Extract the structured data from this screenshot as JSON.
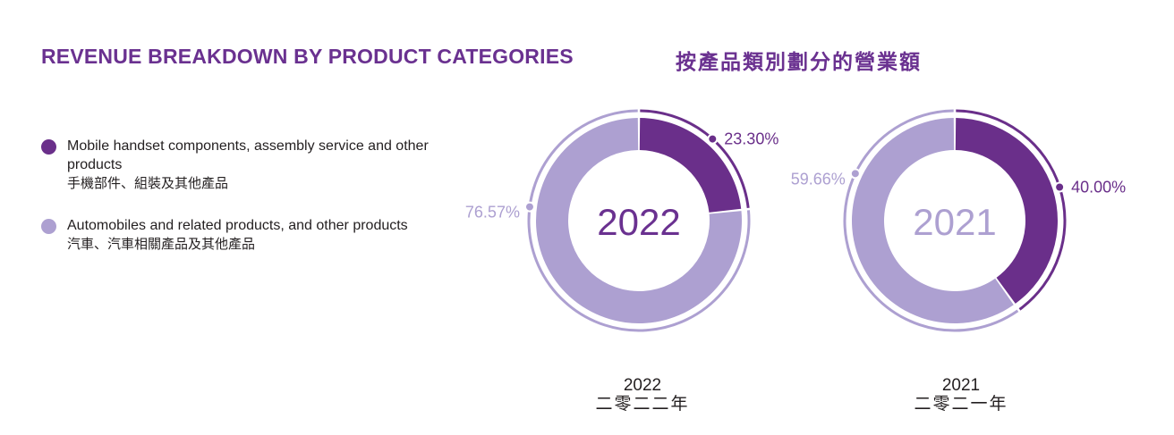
{
  "title_en": "REVENUE BREAKDOWN BY PRODUCT CATEGORIES",
  "title_zh": "按產品類別劃分的營業額",
  "colors": {
    "title": "#6a3190",
    "mobile": "#6a2f8a",
    "auto": "#ada0d1",
    "center_2022": "#6a3190",
    "center_2021": "#ada0d1"
  },
  "legend": [
    {
      "label_en": "Mobile handset components, assembly service and other products",
      "label_zh": "手機部件、組裝及其他產品",
      "color": "#6a2f8a"
    },
    {
      "label_en": "Automobiles and related products, and other products",
      "label_zh": "汽車、汽車相關產品及其他產品",
      "color": "#ada0d1"
    }
  ],
  "chart_data": [
    {
      "type": "pie",
      "variant": "donut",
      "center_label": "2022",
      "caption_year": "2022",
      "caption_zh": "二零二二年",
      "categories": [
        "Mobile handset components, assembly service and other products",
        "Automobiles and related products, and other products"
      ],
      "values": [
        23.3,
        76.57
      ],
      "value_labels": [
        "23.30%",
        "76.57%"
      ]
    },
    {
      "type": "pie",
      "variant": "donut",
      "center_label": "2021",
      "caption_year": "2021",
      "caption_zh": "二零二一年",
      "categories": [
        "Mobile handset components, assembly service and other products",
        "Automobiles and related products, and other products"
      ],
      "values": [
        40.0,
        59.66
      ],
      "value_labels": [
        "40.00%",
        "59.66%"
      ]
    }
  ]
}
